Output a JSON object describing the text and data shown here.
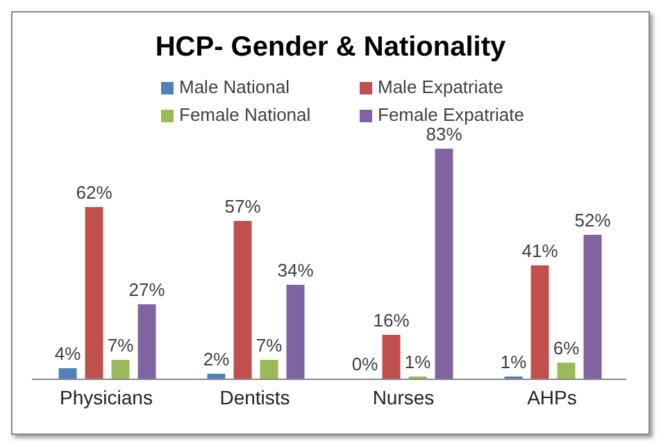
{
  "chart_data": {
    "type": "bar",
    "title": "HCP- Gender & Nationality",
    "categories": [
      "Physicians",
      "Dentists",
      "Nurses",
      "AHPs"
    ],
    "series": [
      {
        "name": "Male National",
        "color": "#4f81bd",
        "values": [
          4,
          2,
          0,
          1
        ],
        "value_labels": [
          "4%",
          "2%",
          "0%",
          "1%"
        ]
      },
      {
        "name": "Male Expatriate",
        "color": "#c0504d",
        "values": [
          62,
          57,
          16,
          41
        ],
        "value_labels": [
          "62%",
          "57%",
          "16%",
          "41%"
        ]
      },
      {
        "name": "Female National",
        "color": "#9bbb59",
        "values": [
          7,
          7,
          1,
          6
        ],
        "value_labels": [
          "7%",
          "7%",
          "1%",
          "6%"
        ]
      },
      {
        "name": "Female Expatriate",
        "color": "#8064a2",
        "values": [
          27,
          34,
          83,
          52
        ],
        "value_labels": [
          "27%",
          "34%",
          "83%",
          "52%"
        ]
      }
    ],
    "legend": "top",
    "grid": false
  }
}
